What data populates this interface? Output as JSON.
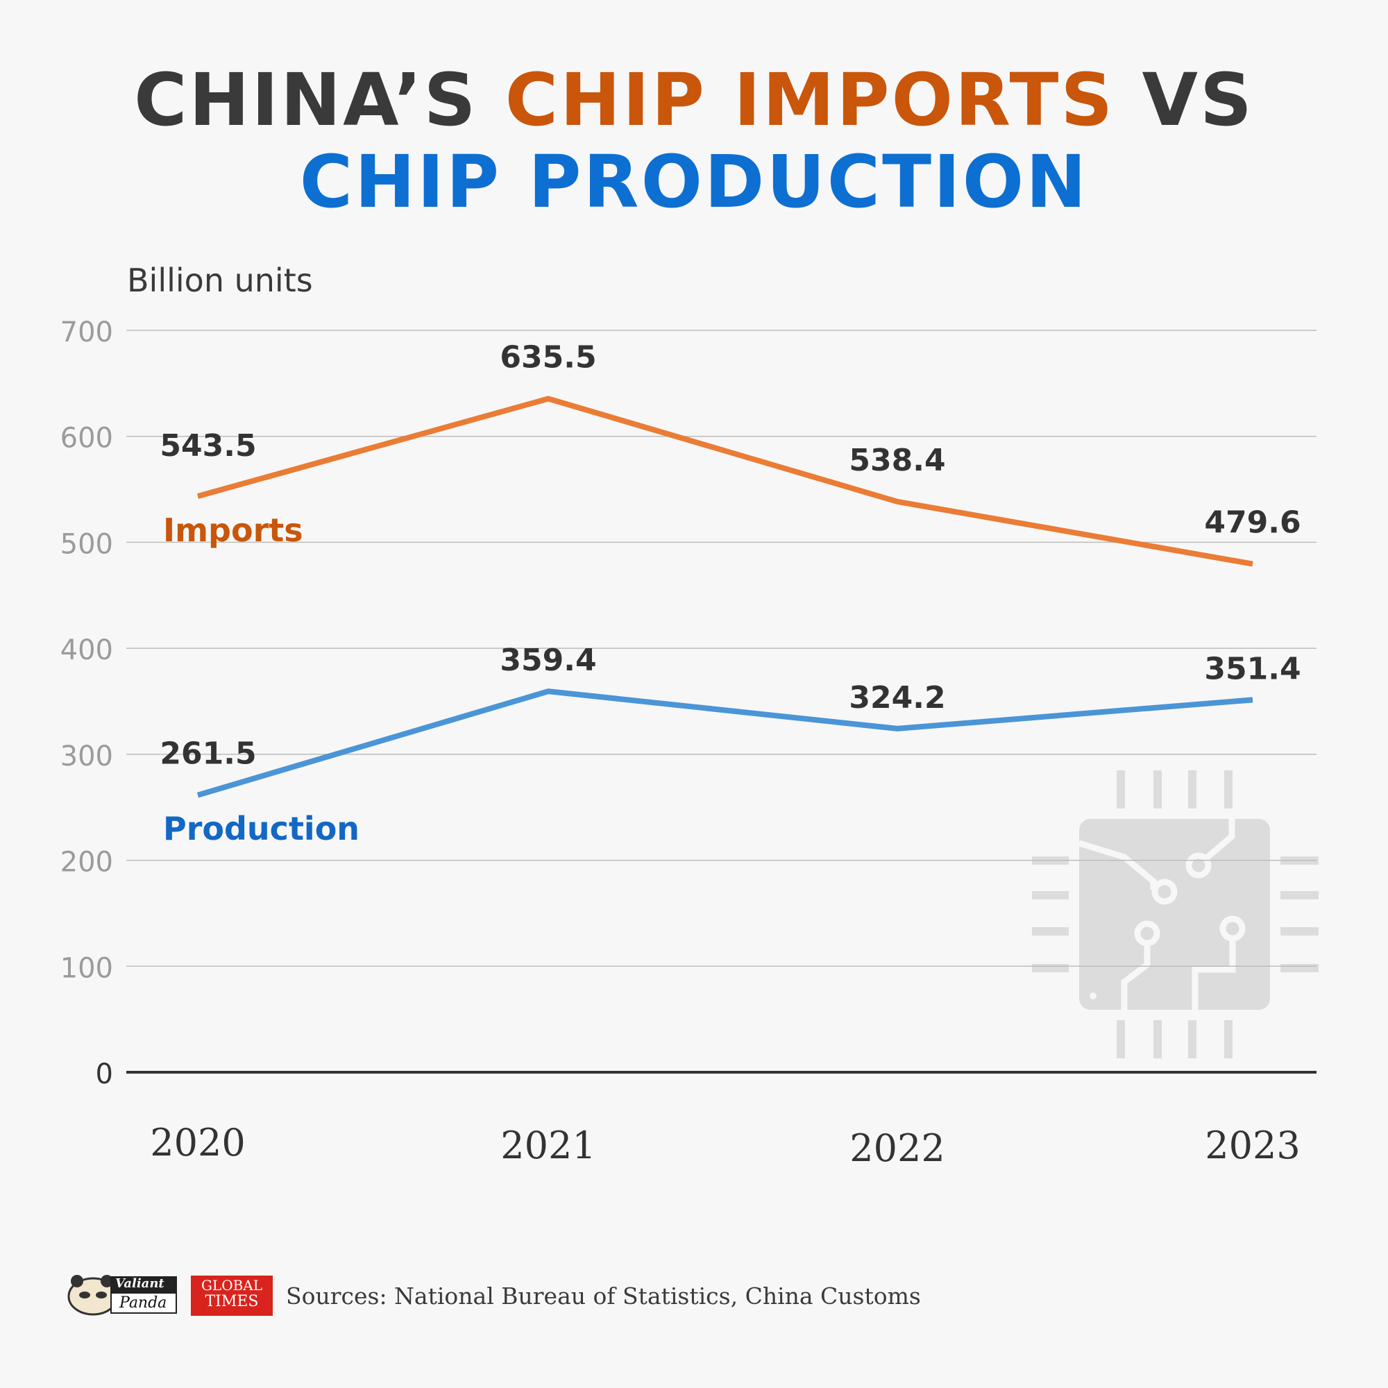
{
  "title": {
    "part1": "CHINA’S ",
    "part2": "CHIP IMPORTS",
    "part3": " VS",
    "line2": "CHIP PRODUCTION",
    "color_dark": "#3a3a3a",
    "color_imports": "#c9560a",
    "color_production": "#0d6fd1"
  },
  "chart_data": {
    "type": "line",
    "categories": [
      "2020",
      "2021",
      "2022",
      "2023"
    ],
    "series": [
      {
        "name": "Imports",
        "values": [
          543.5,
          635.5,
          538.4,
          479.6
        ],
        "color": "#ea7c35",
        "label_color": "#c9560a"
      },
      {
        "name": "Production",
        "values": [
          261.5,
          359.4,
          324.2,
          351.4
        ],
        "color": "#4a95d6",
        "label_color": "#1268c4"
      }
    ],
    "ylabel": "Billion units",
    "ylim": [
      0,
      700
    ],
    "yticks": [
      0,
      100,
      200,
      300,
      400,
      500,
      600,
      700
    ],
    "grid": true
  },
  "footer": {
    "sources": "Sources: National Bureau of Statistics, China Customs",
    "logo1_line1": "Valiant",
    "logo1_line2": "Panda",
    "logo2_line1": "GLOBAL",
    "logo2_line2": "TIMES"
  }
}
